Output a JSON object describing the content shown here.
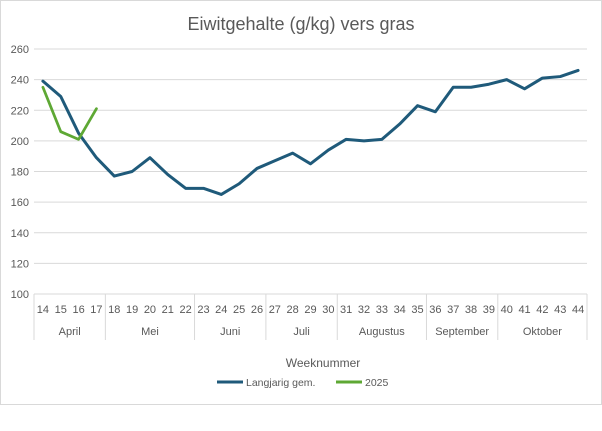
{
  "chart_data": {
    "type": "line",
    "title": "Eiwitgehalte (g/kg) vers gras",
    "xlabel": "Weeknummer",
    "ylabel": "",
    "ylim": [
      100,
      260
    ],
    "yticks": [
      100,
      120,
      140,
      160,
      180,
      200,
      220,
      240,
      260
    ],
    "grid": true,
    "legend_position": "bottom",
    "categories": [
      "14",
      "15",
      "16",
      "17",
      "18",
      "19",
      "20",
      "21",
      "22",
      "23",
      "24",
      "25",
      "26",
      "27",
      "28",
      "29",
      "30",
      "31",
      "32",
      "33",
      "34",
      "35",
      "36",
      "37",
      "38",
      "39",
      "40",
      "41",
      "42",
      "43",
      "44"
    ],
    "months": [
      {
        "label": "April",
        "weeks": [
          "14",
          "15",
          "16",
          "17"
        ]
      },
      {
        "label": "Mei",
        "weeks": [
          "18",
          "19",
          "20",
          "21",
          "22"
        ]
      },
      {
        "label": "Juni",
        "weeks": [
          "23",
          "24",
          "25",
          "26"
        ]
      },
      {
        "label": "Juli",
        "weeks": [
          "27",
          "28",
          "29",
          "30"
        ]
      },
      {
        "label": "Augustus",
        "weeks": [
          "31",
          "32",
          "33",
          "34",
          "35"
        ]
      },
      {
        "label": "September",
        "weeks": [
          "36",
          "37",
          "38",
          "39"
        ]
      },
      {
        "label": "Oktober",
        "weeks": [
          "40",
          "41",
          "42",
          "43",
          "44"
        ]
      }
    ],
    "series": [
      {
        "name": "Langjarig gem.",
        "color": "#1f5a7a",
        "values": [
          239,
          229,
          205,
          189,
          177,
          180,
          189,
          178,
          169,
          169,
          165,
          172,
          182,
          187,
          192,
          185,
          194,
          201,
          200,
          201,
          211,
          223,
          219,
          235,
          235,
          237,
          240,
          234,
          241,
          242,
          246
        ]
      },
      {
        "name": "2025",
        "color": "#5ea834",
        "values": [
          235,
          206,
          201,
          221,
          null,
          null,
          null,
          null,
          null,
          null,
          null,
          null,
          null,
          null,
          null,
          null,
          null,
          null,
          null,
          null,
          null,
          null,
          null,
          null,
          null,
          null,
          null,
          null,
          null,
          null,
          null
        ]
      }
    ]
  }
}
